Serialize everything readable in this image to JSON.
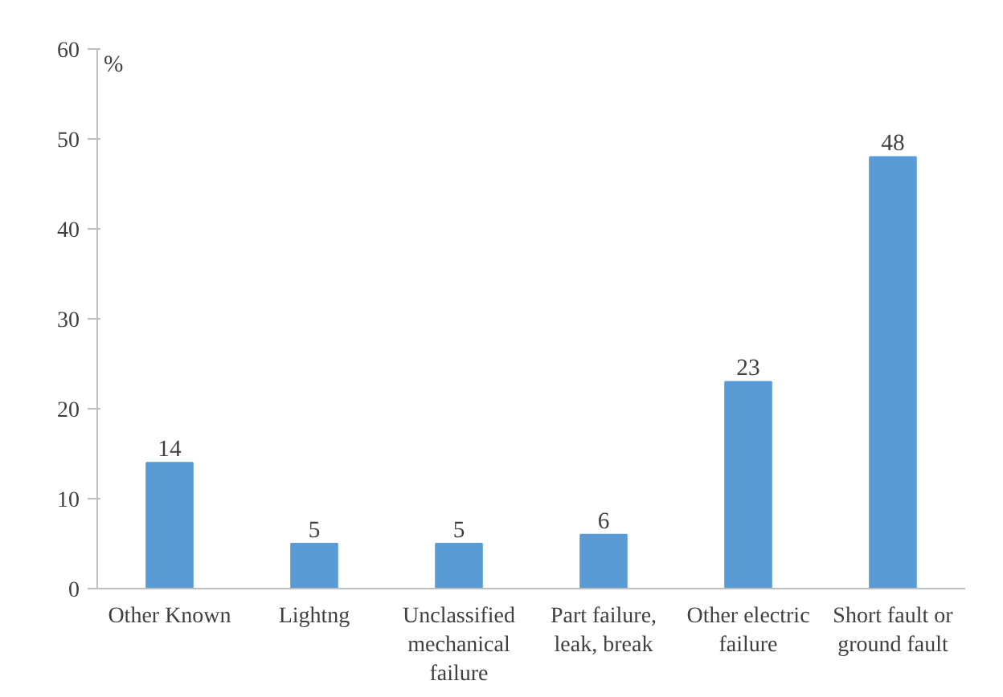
{
  "chart_data": {
    "type": "bar",
    "ylabel": "%",
    "categories": [
      "Other Known",
      "Lightng",
      "Unclassified mechanical failure",
      "Part failure, leak, break",
      "Other electric failure",
      "Short fault or ground fault"
    ],
    "values": [
      14,
      5,
      5,
      6,
      23,
      48
    ],
    "color": "#5b9bd5",
    "ylim": [
      0,
      60
    ],
    "yticks": [
      0,
      10,
      20,
      30,
      40,
      50,
      60
    ],
    "grid": false,
    "data_labels": true
  }
}
